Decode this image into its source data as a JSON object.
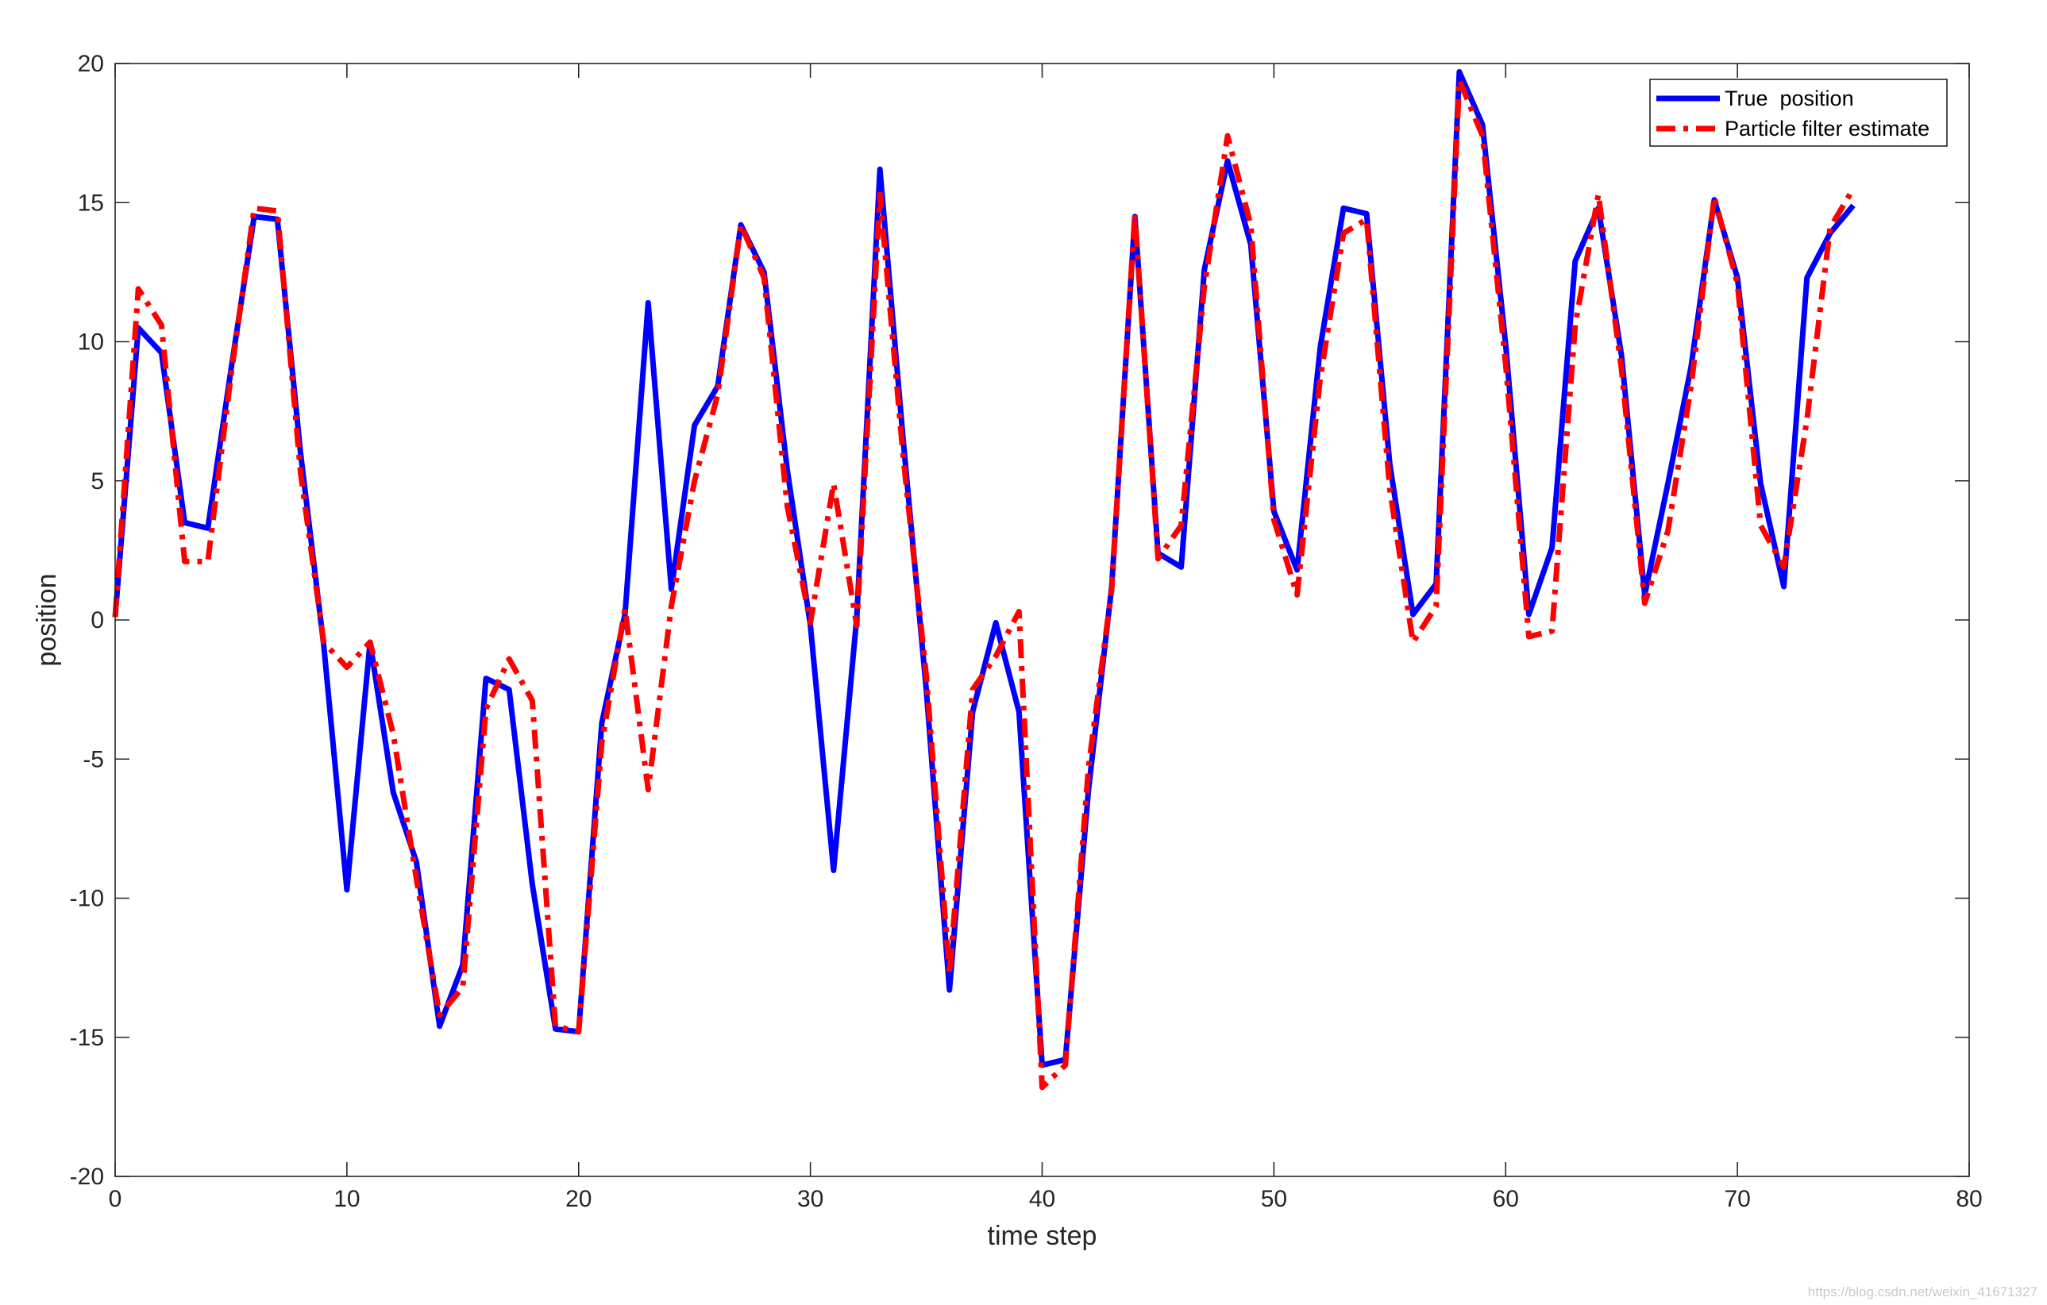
{
  "chart_data": {
    "type": "line",
    "title": "",
    "xlabel": "time step",
    "ylabel": "position",
    "xlim": [
      0,
      80
    ],
    "ylim": [
      -20,
      20
    ],
    "xticks": [
      0,
      10,
      20,
      30,
      40,
      50,
      60,
      70,
      80
    ],
    "yticks": [
      -20,
      -15,
      -10,
      -5,
      0,
      5,
      10,
      15,
      20
    ],
    "grid": false,
    "legend_position": "top-right",
    "x": [
      0,
      1,
      2,
      3,
      4,
      5,
      6,
      7,
      8,
      9,
      10,
      11,
      12,
      13,
      14,
      15,
      16,
      17,
      18,
      19,
      20,
      21,
      22,
      23,
      24,
      25,
      26,
      27,
      28,
      29,
      30,
      31,
      32,
      33,
      34,
      35,
      36,
      37,
      38,
      39,
      40,
      41,
      42,
      43,
      44,
      45,
      46,
      47,
      48,
      49,
      50,
      51,
      52,
      53,
      54,
      55,
      56,
      57,
      58,
      59,
      60,
      61,
      62,
      63,
      64,
      65,
      66,
      67,
      68,
      69,
      70,
      71,
      72,
      73,
      74,
      75
    ],
    "series": [
      {
        "name": "True  position",
        "color": "#0000ff",
        "style": "solid",
        "values": [
          0.1,
          10.5,
          9.6,
          3.5,
          3.3,
          9.0,
          14.5,
          14.4,
          6.0,
          -0.9,
          -9.7,
          -0.8,
          -6.2,
          -8.7,
          -14.6,
          -12.4,
          -2.1,
          -2.5,
          -9.5,
          -14.7,
          -14.8,
          -3.7,
          0.2,
          11.4,
          1.1,
          7.0,
          8.4,
          14.2,
          12.5,
          5.4,
          -0.2,
          -9.0,
          0.1,
          16.2,
          6.5,
          -2.5,
          -13.3,
          -3.3,
          -0.1,
          -3.3,
          -16.0,
          -15.8,
          -6.1,
          1.2,
          14.5,
          2.4,
          1.9,
          12.6,
          16.5,
          13.5,
          3.9,
          1.8,
          9.8,
          14.8,
          14.6,
          5.6,
          0.2,
          1.3,
          19.7,
          17.8,
          9.9,
          0.2,
          2.6,
          12.9,
          14.8,
          9.5,
          0.9,
          4.9,
          9.1,
          15.1,
          12.3,
          4.9,
          1.2,
          12.3,
          13.9,
          14.9
        ]
      },
      {
        "name": "Particle filter estimate",
        "color": "#ff0000",
        "style": "dashdot",
        "values": [
          0.1,
          11.9,
          10.6,
          2.1,
          2.1,
          8.8,
          14.8,
          14.7,
          5.3,
          -0.8,
          -1.7,
          -0.8,
          -4.1,
          -9.3,
          -14.2,
          -13.2,
          -3.2,
          -1.4,
          -2.9,
          -14.6,
          -14.8,
          -4.4,
          0.4,
          -6.1,
          0.5,
          5.0,
          8.1,
          14.2,
          12.3,
          4.1,
          -0.1,
          4.9,
          -0.2,
          15.3,
          5.9,
          -2.0,
          -12.7,
          -2.5,
          -1.3,
          0.3,
          -16.8,
          -16.0,
          -5.3,
          1.1,
          14.6,
          2.2,
          3.4,
          12.0,
          17.4,
          14.2,
          3.6,
          0.9,
          8.7,
          13.9,
          14.4,
          4.7,
          -0.8,
          0.5,
          19.4,
          17.4,
          9.2,
          -0.6,
          -0.4,
          10.6,
          15.3,
          9.0,
          0.6,
          3.2,
          8.4,
          15.2,
          12.1,
          3.4,
          1.9,
          7.2,
          14.1,
          15.5
        ]
      }
    ]
  },
  "watermark": "https://blog.csdn.net/weixin_41671327"
}
